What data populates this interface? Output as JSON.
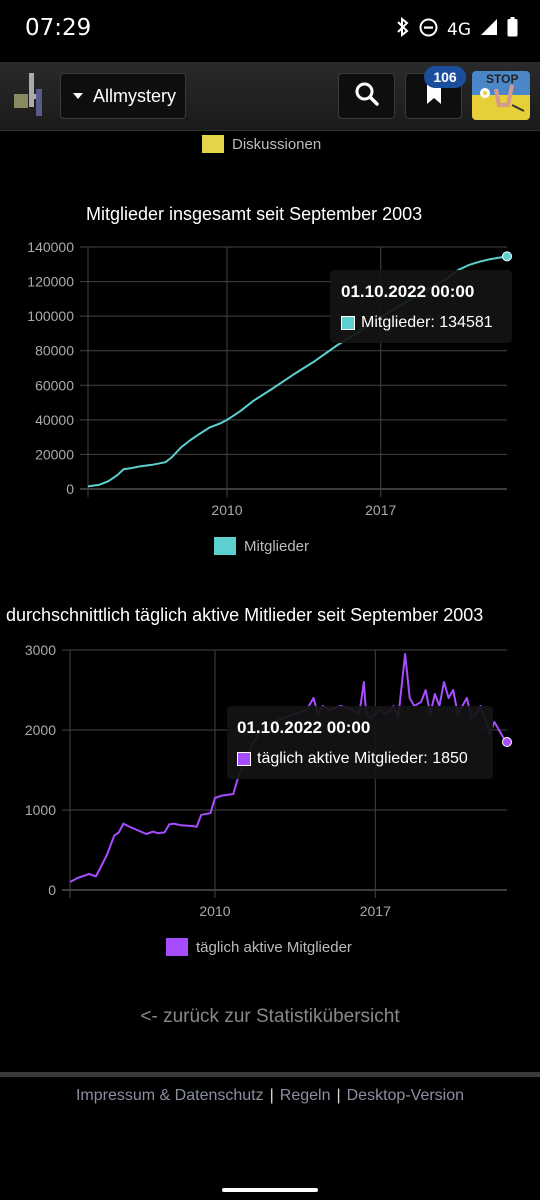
{
  "status": {
    "time": "07:29",
    "network": "4G"
  },
  "header": {
    "site_label": "Allmystery",
    "bookmark_count": "106",
    "banner_text": "STOP"
  },
  "legend_top": {
    "label": "Diskussionen",
    "color": "#e3d44a"
  },
  "chart1": {
    "title": "Mitglieder insgesamt seit September 2003",
    "legend": "Mitglieder",
    "tooltip_title": "01.10.2022 00:00",
    "tooltip_value": "Mitglieder: 134581",
    "color": "#5ecfcf"
  },
  "chart2": {
    "title": "durchschnittlich täglich aktive Mitlieder seit September 2003",
    "legend": "täglich aktive Mitglieder",
    "tooltip_title": "01.10.2022 00:00",
    "tooltip_value": "täglich aktive Mitglieder: 1850",
    "color": "#a64dff"
  },
  "back_link": "<- zurück zur Statistikübersicht",
  "footer": {
    "impressum": "Impressum & Datenschutz",
    "regeln": "Regeln",
    "desktop": "Desktop-Version"
  },
  "chart_data": [
    {
      "type": "line",
      "title": "Mitglieder insgesamt seit September 2003",
      "xlabel": "",
      "ylabel": "",
      "ylim": [
        0,
        140000
      ],
      "xlim": [
        2003.67,
        2022.75
      ],
      "x_ticks": [
        "2010",
        "2017"
      ],
      "y_ticks": [
        "0",
        "20000",
        "40000",
        "60000",
        "80000",
        "100000",
        "120000",
        "140000"
      ],
      "grid": true,
      "series": [
        {
          "name": "Mitglieder",
          "x": [
            2003.67,
            2004.2,
            2004.6,
            2005.0,
            2005.3,
            2005.6,
            2006.0,
            2006.6,
            2007.2,
            2007.5,
            2007.9,
            2008.3,
            2008.7,
            2009.2,
            2009.7,
            2010.0,
            2010.6,
            2011.2,
            2012.0,
            2013.0,
            2014.0,
            2015.0,
            2016.0,
            2017.0,
            2018.0,
            2019.0,
            2020.0,
            2020.5,
            2021.0,
            2021.5,
            2022.0,
            2022.75
          ],
          "y": [
            1500,
            2500,
            4500,
            8000,
            11500,
            12000,
            13000,
            14000,
            15500,
            18500,
            24000,
            28000,
            31500,
            35500,
            38000,
            40000,
            45000,
            51000,
            57500,
            66000,
            74000,
            83000,
            91000,
            99500,
            107000,
            114500,
            121500,
            126500,
            129500,
            131500,
            133000,
            134581
          ]
        }
      ]
    },
    {
      "type": "line",
      "title": "durchschnittlich täglich aktive Mitlieder seit September 2003",
      "xlabel": "",
      "ylabel": "",
      "ylim": [
        0,
        3000
      ],
      "xlim": [
        2003.67,
        2022.75
      ],
      "x_ticks": [
        "2010",
        "2017"
      ],
      "y_ticks": [
        "0",
        "1000",
        "2000",
        "3000"
      ],
      "grid": true,
      "series": [
        {
          "name": "täglich aktive Mitglieder",
          "x": [
            2003.67,
            2004.0,
            2004.5,
            2004.8,
            2005.0,
            2005.3,
            2005.6,
            2005.8,
            2006.0,
            2006.2,
            2006.6,
            2007.0,
            2007.3,
            2007.5,
            2007.8,
            2008.0,
            2008.2,
            2008.5,
            2009.0,
            2009.2,
            2009.4,
            2009.8,
            2010.0,
            2010.3,
            2010.8,
            2011.0,
            2011.3,
            2011.6,
            2012.0,
            2012.5,
            2013.0,
            2013.5,
            2014.0,
            2014.3,
            2014.5,
            2014.7,
            2015.0,
            2015.5,
            2016.0,
            2016.3,
            2016.5,
            2016.6,
            2016.8,
            2017.2,
            2017.5,
            2017.8,
            2018.0,
            2018.3,
            2018.5,
            2018.7,
            2019.0,
            2019.2,
            2019.4,
            2019.6,
            2019.8,
            2020.0,
            2020.2,
            2020.4,
            2020.6,
            2020.8,
            2021.0,
            2021.2,
            2021.4,
            2021.6,
            2021.8,
            2022.0,
            2022.2,
            2022.4,
            2022.6,
            2022.75
          ],
          "y": [
            100,
            150,
            200,
            170,
            280,
            450,
            680,
            720,
            830,
            800,
            750,
            700,
            730,
            710,
            720,
            820,
            830,
            810,
            800,
            790,
            940,
            960,
            1150,
            1180,
            1200,
            1400,
            1600,
            1800,
            2000,
            2100,
            2150,
            2200,
            2250,
            2400,
            2200,
            2300,
            2250,
            2300,
            2250,
            2200,
            2600,
            2200,
            2150,
            2250,
            2200,
            2300,
            2150,
            2950,
            2400,
            2300,
            2350,
            2500,
            2200,
            2450,
            2300,
            2600,
            2400,
            2500,
            2200,
            2300,
            2400,
            2150,
            2200,
            2300,
            2150,
            1950,
            2100,
            2000,
            1900,
            1850
          ]
        }
      ]
    }
  ]
}
